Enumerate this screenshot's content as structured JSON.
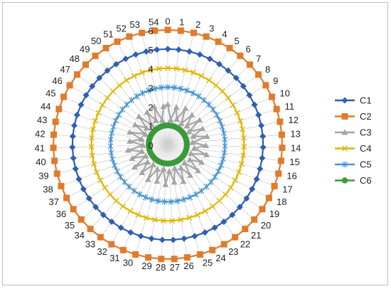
{
  "chart_data": {
    "type": "radar",
    "categories": [
      "0",
      "1",
      "2",
      "3",
      "4",
      "5",
      "6",
      "7",
      "8",
      "9",
      "10",
      "11",
      "12",
      "13",
      "14",
      "15",
      "16",
      "17",
      "18",
      "19",
      "20",
      "21",
      "22",
      "23",
      "24",
      "25",
      "26",
      "27",
      "28",
      "29",
      "30",
      "31",
      "32",
      "33",
      "34",
      "35",
      "36",
      "37",
      "38",
      "39",
      "40",
      "41",
      "42",
      "43",
      "44",
      "45",
      "46",
      "47",
      "48",
      "49",
      "50",
      "51",
      "52",
      "53",
      "54"
    ],
    "radial_ticks": [
      0,
      1,
      2,
      3,
      4,
      5,
      6
    ],
    "rlim": [
      0,
      6
    ],
    "grid": true,
    "legend_position": "right",
    "series": [
      {
        "name": "C1",
        "value": 5,
        "color": "#2e5fb0",
        "marker": "diamond"
      },
      {
        "name": "C2",
        "value": 6,
        "color": "#e07b2c",
        "marker": "square"
      },
      {
        "name": "C3",
        "values": [
          2.1,
          1.3,
          2.0,
          1.4,
          2.1,
          1.3,
          2.0,
          1.4,
          2.1,
          1.3,
          2.0,
          1.4,
          2.1,
          1.3,
          2.0,
          1.4,
          2.1,
          1.3,
          2.0,
          1.4,
          2.1,
          1.3,
          2.0,
          1.4,
          2.1,
          1.3,
          2.0,
          1.4,
          2.1,
          1.3,
          2.0,
          1.4,
          2.1,
          1.3,
          2.0,
          1.4,
          2.1,
          1.3,
          2.0,
          1.4,
          2.1,
          1.3,
          2.0,
          1.4,
          2.1,
          1.3,
          2.0,
          1.4,
          2.1,
          1.3,
          2.0,
          1.4,
          2.1,
          1.3,
          2.0
        ],
        "color": "#a5a5a5",
        "marker": "triangle"
      },
      {
        "name": "C4",
        "value": 4,
        "color": "#e3b400",
        "marker": "x"
      },
      {
        "name": "C5",
        "value": 3,
        "color": "#4a96d2",
        "marker": "star"
      },
      {
        "name": "C6",
        "value": 1,
        "color": "#3a9a3a",
        "marker": "circle"
      }
    ]
  }
}
